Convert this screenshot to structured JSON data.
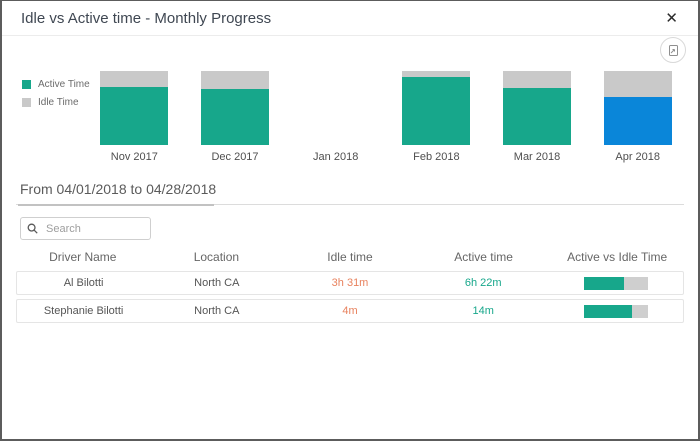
{
  "dialog": {
    "title": "Idle vs Active time - Monthly Progress",
    "close_glyph": "✕"
  },
  "colors": {
    "active": "#17a78b",
    "idle": "#c9c9c9",
    "selected_active": "#0a86d9",
    "idle_text": "#e8825e",
    "active_text": "#17a78b"
  },
  "legend": [
    {
      "label": "Active Time",
      "color": "#17a78b"
    },
    {
      "label": "Idle Time",
      "color": "#c9c9c9"
    }
  ],
  "chart_data": {
    "type": "bar",
    "stacked": true,
    "title": "Idle vs Active time - Monthly Progress",
    "categories": [
      "Nov 2017",
      "Dec 2017",
      "Jan 2018",
      "Feb 2018",
      "Mar 2018",
      "Apr 2018"
    ],
    "series": [
      {
        "name": "Active Time",
        "values": [
          78,
          76,
          0,
          92,
          77,
          65
        ]
      },
      {
        "name": "Idle Time",
        "values": [
          22,
          24,
          0,
          8,
          23,
          35
        ]
      }
    ],
    "ylim": [
      0,
      100
    ],
    "unit": "percent of bar height (estimated, no axis shown)",
    "legend_position": "left",
    "grid": false,
    "selected_category": "Apr 2018",
    "note": "Selected month (Apr 2018) active segment rendered blue"
  },
  "range_heading": {
    "text": "From 04/01/2018 to 04/28/2018"
  },
  "search": {
    "placeholder": "Search"
  },
  "table": {
    "columns": [
      "Driver Name",
      "Location",
      "Idle time",
      "Active time",
      "Active vs Idle Time"
    ],
    "rows": [
      {
        "driver": "Al Bilotti",
        "location": "North CA",
        "idle": "3h 31m",
        "active": "6h 22m",
        "active_pct": 62
      },
      {
        "driver": "Stephanie Bilotti",
        "location": "North CA",
        "idle": "4m",
        "active": "14m",
        "active_pct": 75
      }
    ]
  }
}
